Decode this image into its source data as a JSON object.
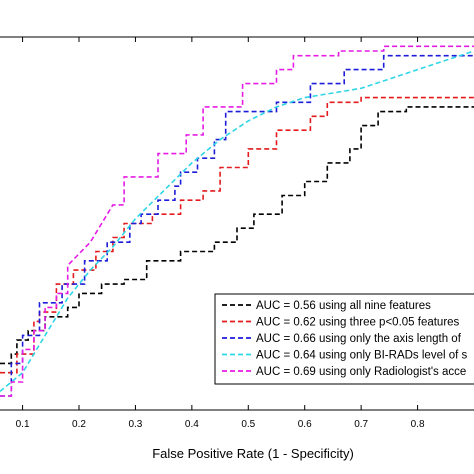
{
  "chart_data": {
    "type": "line",
    "title": "",
    "xlabel": "False Positive Rate (1 - Specificity)",
    "ylabel": "",
    "xlim": [
      0.06,
      0.9
    ],
    "ylim": [
      0.2,
      1.0
    ],
    "x_ticks": [
      "0.1",
      "0.2",
      "0.3",
      "0.4",
      "0.5",
      "0.6",
      "0.7",
      "0.8"
    ],
    "grid": false,
    "legend_position": "lower-right",
    "line_style": "dashed",
    "series": [
      {
        "name": "AUC = 0.56 using all nine features",
        "color": "#000000",
        "points": [
          [
            0.06,
            0.3
          ],
          [
            0.08,
            0.3
          ],
          [
            0.08,
            0.32
          ],
          [
            0.09,
            0.32
          ],
          [
            0.09,
            0.35
          ],
          [
            0.11,
            0.35
          ],
          [
            0.11,
            0.37
          ],
          [
            0.14,
            0.37
          ],
          [
            0.14,
            0.4
          ],
          [
            0.18,
            0.4
          ],
          [
            0.18,
            0.42
          ],
          [
            0.2,
            0.42
          ],
          [
            0.2,
            0.45
          ],
          [
            0.24,
            0.45
          ],
          [
            0.24,
            0.47
          ],
          [
            0.28,
            0.47
          ],
          [
            0.28,
            0.48
          ],
          [
            0.32,
            0.48
          ],
          [
            0.32,
            0.52
          ],
          [
            0.38,
            0.52
          ],
          [
            0.38,
            0.54
          ],
          [
            0.44,
            0.54
          ],
          [
            0.44,
            0.56
          ],
          [
            0.48,
            0.56
          ],
          [
            0.48,
            0.59
          ],
          [
            0.51,
            0.59
          ],
          [
            0.51,
            0.62
          ],
          [
            0.56,
            0.62
          ],
          [
            0.56,
            0.66
          ],
          [
            0.6,
            0.66
          ],
          [
            0.6,
            0.69
          ],
          [
            0.64,
            0.69
          ],
          [
            0.64,
            0.73
          ],
          [
            0.68,
            0.73
          ],
          [
            0.68,
            0.76
          ],
          [
            0.7,
            0.76
          ],
          [
            0.7,
            0.81
          ],
          [
            0.73,
            0.81
          ],
          [
            0.73,
            0.84
          ],
          [
            0.78,
            0.84
          ],
          [
            0.78,
            0.85
          ],
          [
            0.9,
            0.85
          ]
        ]
      },
      {
        "name": "AUC = 0.62 using three p<0.05 features",
        "color": "#e41a1c",
        "points": [
          [
            0.06,
            0.28
          ],
          [
            0.09,
            0.28
          ],
          [
            0.09,
            0.32
          ],
          [
            0.12,
            0.32
          ],
          [
            0.12,
            0.39
          ],
          [
            0.13,
            0.39
          ],
          [
            0.13,
            0.41
          ],
          [
            0.16,
            0.41
          ],
          [
            0.16,
            0.47
          ],
          [
            0.19,
            0.47
          ],
          [
            0.19,
            0.5
          ],
          [
            0.23,
            0.5
          ],
          [
            0.23,
            0.54
          ],
          [
            0.26,
            0.54
          ],
          [
            0.26,
            0.57
          ],
          [
            0.28,
            0.57
          ],
          [
            0.28,
            0.6
          ],
          [
            0.33,
            0.6
          ],
          [
            0.33,
            0.62
          ],
          [
            0.38,
            0.62
          ],
          [
            0.38,
            0.65
          ],
          [
            0.42,
            0.65
          ],
          [
            0.42,
            0.67
          ],
          [
            0.45,
            0.67
          ],
          [
            0.45,
            0.72
          ],
          [
            0.5,
            0.72
          ],
          [
            0.5,
            0.76
          ],
          [
            0.55,
            0.76
          ],
          [
            0.55,
            0.8
          ],
          [
            0.61,
            0.8
          ],
          [
            0.61,
            0.83
          ],
          [
            0.64,
            0.83
          ],
          [
            0.64,
            0.86
          ],
          [
            0.7,
            0.86
          ],
          [
            0.7,
            0.87
          ],
          [
            0.9,
            0.87
          ]
        ]
      },
      {
        "name": "AUC = 0.66 using only the axis length of",
        "color": "#1c1cd9",
        "points": [
          [
            0.06,
            0.23
          ],
          [
            0.08,
            0.23
          ],
          [
            0.08,
            0.3
          ],
          [
            0.1,
            0.3
          ],
          [
            0.1,
            0.36
          ],
          [
            0.13,
            0.36
          ],
          [
            0.13,
            0.43
          ],
          [
            0.17,
            0.43
          ],
          [
            0.17,
            0.47
          ],
          [
            0.21,
            0.47
          ],
          [
            0.21,
            0.52
          ],
          [
            0.25,
            0.52
          ],
          [
            0.25,
            0.56
          ],
          [
            0.29,
            0.56
          ],
          [
            0.29,
            0.6
          ],
          [
            0.31,
            0.6
          ],
          [
            0.31,
            0.62
          ],
          [
            0.34,
            0.62
          ],
          [
            0.34,
            0.65
          ],
          [
            0.37,
            0.65
          ],
          [
            0.37,
            0.68
          ],
          [
            0.38,
            0.68
          ],
          [
            0.38,
            0.71
          ],
          [
            0.41,
            0.71
          ],
          [
            0.41,
            0.74
          ],
          [
            0.44,
            0.74
          ],
          [
            0.44,
            0.78
          ],
          [
            0.46,
            0.78
          ],
          [
            0.46,
            0.84
          ],
          [
            0.55,
            0.84
          ],
          [
            0.55,
            0.86
          ],
          [
            0.61,
            0.86
          ],
          [
            0.61,
            0.9
          ],
          [
            0.67,
            0.9
          ],
          [
            0.67,
            0.93
          ],
          [
            0.74,
            0.93
          ],
          [
            0.74,
            0.96
          ],
          [
            0.9,
            0.96
          ]
        ]
      },
      {
        "name": "AUC = 0.64 using only BI-RADs level of s",
        "color": "#2fd6e6",
        "points": [
          [
            0.06,
            0.24
          ],
          [
            0.1,
            0.28
          ],
          [
            0.14,
            0.36
          ],
          [
            0.18,
            0.44
          ],
          [
            0.22,
            0.5
          ],
          [
            0.26,
            0.55
          ],
          [
            0.3,
            0.61
          ],
          [
            0.35,
            0.67
          ],
          [
            0.4,
            0.73
          ],
          [
            0.45,
            0.78
          ],
          [
            0.5,
            0.82
          ],
          [
            0.55,
            0.85
          ],
          [
            0.6,
            0.87
          ],
          [
            0.65,
            0.88
          ],
          [
            0.7,
            0.89
          ],
          [
            0.75,
            0.91
          ],
          [
            0.8,
            0.93
          ],
          [
            0.85,
            0.95
          ],
          [
            0.9,
            0.97
          ]
        ]
      },
      {
        "name": "AUC = 0.69 using only Radiologist's acce",
        "color": "#e61ce6",
        "points": [
          [
            0.06,
            0.23
          ],
          [
            0.08,
            0.23
          ],
          [
            0.08,
            0.26
          ],
          [
            0.1,
            0.26
          ],
          [
            0.1,
            0.33
          ],
          [
            0.12,
            0.33
          ],
          [
            0.12,
            0.37
          ],
          [
            0.14,
            0.37
          ],
          [
            0.14,
            0.42
          ],
          [
            0.16,
            0.42
          ],
          [
            0.16,
            0.45
          ],
          [
            0.18,
            0.45
          ],
          [
            0.18,
            0.51
          ],
          [
            0.22,
            0.56
          ],
          [
            0.26,
            0.64
          ],
          [
            0.28,
            0.64
          ],
          [
            0.28,
            0.7
          ],
          [
            0.34,
            0.7
          ],
          [
            0.34,
            0.75
          ],
          [
            0.39,
            0.75
          ],
          [
            0.39,
            0.79
          ],
          [
            0.42,
            0.79
          ],
          [
            0.42,
            0.85
          ],
          [
            0.49,
            0.85
          ],
          [
            0.49,
            0.9
          ],
          [
            0.55,
            0.9
          ],
          [
            0.55,
            0.93
          ],
          [
            0.58,
            0.93
          ],
          [
            0.58,
            0.96
          ],
          [
            0.66,
            0.96
          ],
          [
            0.66,
            0.97
          ],
          [
            0.74,
            0.97
          ],
          [
            0.74,
            0.98
          ],
          [
            0.9,
            0.98
          ]
        ]
      }
    ]
  }
}
